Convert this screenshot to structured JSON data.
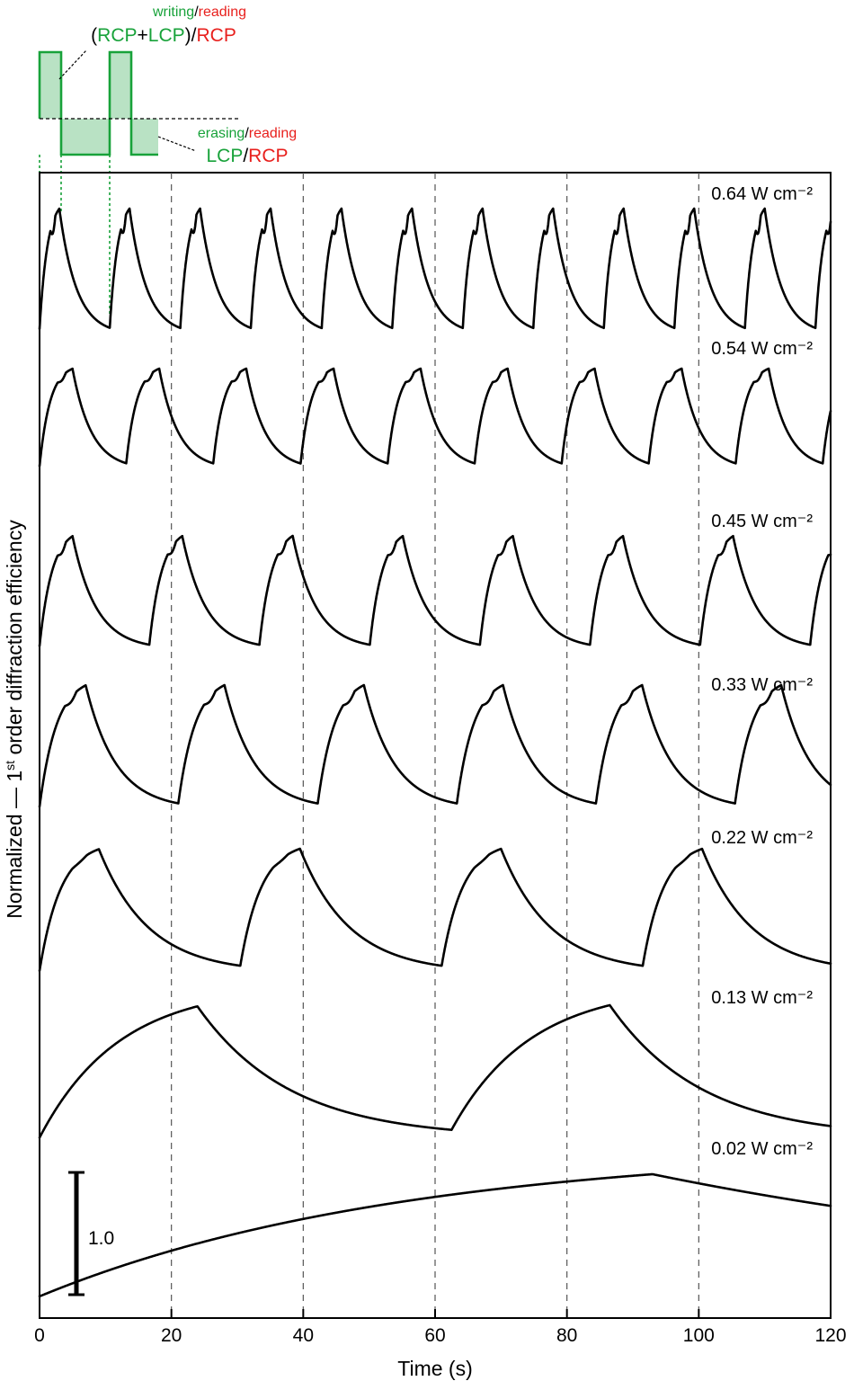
{
  "chart_data": {
    "type": "line",
    "xlabel": "Time (s)",
    "ylabel": "Normalized — 1st order diffraction efficiency",
    "ylabel_parts": {
      "before": "Normalized — 1",
      "sup": "st",
      "after": " order diffraction efficiency"
    },
    "xlim": [
      0,
      120
    ],
    "x_ticks": [
      0,
      20,
      40,
      60,
      80,
      100,
      120
    ],
    "x_tick_labels": [
      "0",
      "20",
      "40",
      "60",
      "80",
      "100",
      "120"
    ],
    "vertical_dashed_lines": [
      20,
      40,
      60,
      80,
      100
    ],
    "scale_bar": {
      "value": 1.0,
      "label": "1.0"
    },
    "series": [
      {
        "name": "0.64 W cm⁻²",
        "write_s": 3,
        "erase_s": 7.7,
        "cycles": 12,
        "first_peak_s": 3.0
      },
      {
        "name": "0.54 W cm⁻²",
        "write_s": 5,
        "erase_s": 8.2,
        "cycles": 10,
        "first_peak_s": 4.6
      },
      {
        "name": "0.45 W cm⁻²",
        "write_s": 5,
        "erase_s": 11.7,
        "cycles": 7,
        "first_peak_s": 5.0
      },
      {
        "name": "0.33 W cm⁻²",
        "write_s": 7,
        "erase_s": 14.1,
        "cycles": 5,
        "first_peak_s": 7.0
      },
      {
        "name": "0.22 W cm⁻²",
        "write_s": 9,
        "erase_s": 21.5,
        "cycles": 4,
        "first_peak_s": 9.0
      },
      {
        "name": "0.13 W cm⁻²",
        "write_s": 24,
        "erase_s": 38.5,
        "cycles": 2,
        "first_peak_s": 24.0
      },
      {
        "name": "0.02 W cm⁻²",
        "write_s": 93,
        "erase_s": 27,
        "cycles": 1,
        "first_peak_s": 93.0
      }
    ],
    "inset_schematic": {
      "writing_reading_top": {
        "writing": "writing",
        "slash": "/",
        "reading": "reading"
      },
      "writing_reading_bottom": {
        "open": "(",
        "rcp1": "RCP",
        "plus": "+",
        "lcp": "LCP",
        "close": ")",
        "slash": "/",
        "rcp2": "RCP"
      },
      "erasing_reading_top": {
        "erasing": "erasing",
        "slash": "/",
        "reading": "reading"
      },
      "erasing_reading_bottom": {
        "lcp": "LCP",
        "slash": "/",
        "rcp": "RCP"
      },
      "colors": {
        "green": "#18a23a",
        "red": "#e8201d",
        "fill": "#b9e2c4"
      }
    }
  }
}
